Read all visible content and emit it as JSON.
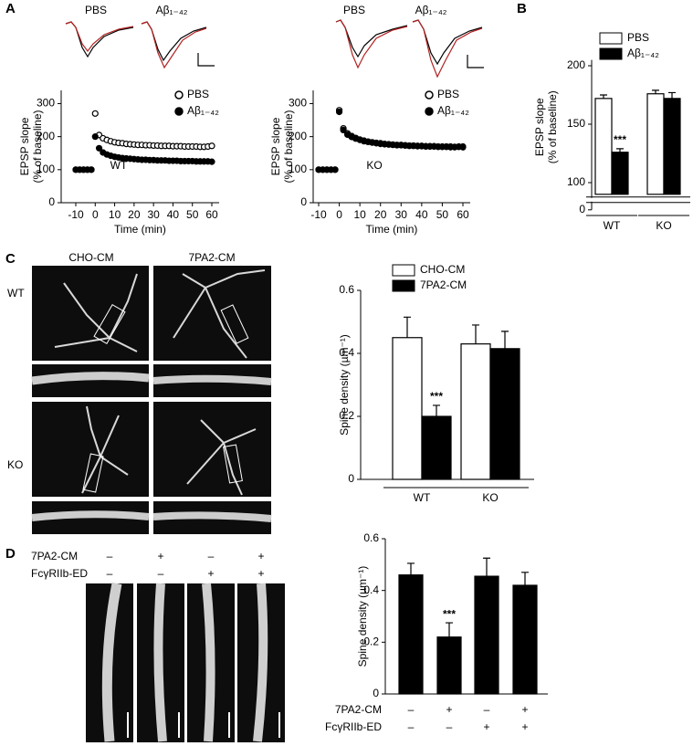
{
  "panel_labels": [
    "A",
    "B",
    "C",
    "D"
  ],
  "traces": {
    "labels": [
      "PBS",
      "Aβ₁₋₄₂",
      "PBS",
      "Aβ₁₋₄₂"
    ]
  },
  "images_c": {
    "columns": [
      "CHO-CM",
      "7PA2-CM"
    ],
    "rows": [
      "WT",
      "KO"
    ]
  },
  "images_d": {
    "conditions": [
      {
        "name": "7PA2-CM",
        "values": [
          "–",
          "+",
          "–",
          "+"
        ]
      },
      {
        "name": "FcγRIIb-ED",
        "values": [
          "–",
          "–",
          "+",
          "+"
        ]
      }
    ]
  },
  "chart_data": [
    {
      "type": "scatter",
      "ylabel": [
        "EPSP slope",
        "(% of baseline)"
      ],
      "xlabel": "Time (min)",
      "annotation": "WT",
      "x": [
        -10,
        -8,
        -6,
        -4,
        -2,
        0,
        2,
        4,
        6,
        8,
        10,
        12,
        14,
        16,
        18,
        20,
        22,
        24,
        26,
        28,
        30,
        32,
        34,
        36,
        38,
        40,
        42,
        44,
        46,
        48,
        50,
        52,
        54,
        56,
        58,
        60
      ],
      "xlim": [
        -10,
        60
      ],
      "xticks": [
        -10,
        0,
        10,
        20,
        30,
        40,
        50,
        60
      ],
      "ylim": [
        0,
        340
      ],
      "yticks": [
        0,
        100,
        200,
        300
      ],
      "series": [
        {
          "name": "PBS",
          "color": "#000000",
          "marker": "open",
          "values": [
            100,
            100,
            100,
            100,
            100,
            270,
            205,
            195,
            190,
            186,
            183,
            181,
            180,
            178,
            177,
            176,
            175,
            175,
            174,
            174,
            173,
            173,
            172,
            172,
            172,
            171,
            171,
            171,
            170,
            170,
            170,
            170,
            169,
            169,
            170,
            172
          ]
        },
        {
          "name": "Aβ₁₋₄₂",
          "color": "#000000",
          "marker": "filled",
          "values": [
            100,
            100,
            100,
            100,
            100,
            200,
            165,
            152,
            146,
            142,
            139,
            137,
            135,
            134,
            133,
            132,
            131,
            130,
            130,
            129,
            129,
            128,
            128,
            128,
            127,
            127,
            127,
            126,
            126,
            126,
            126,
            125,
            125,
            125,
            125,
            124
          ]
        }
      ]
    },
    {
      "type": "scatter",
      "ylabel": [
        "EPSP slope",
        "(% of baseline)"
      ],
      "xlabel": "Time (min)",
      "annotation": "KO",
      "x": [
        -10,
        -8,
        -6,
        -4,
        -2,
        0,
        2,
        4,
        6,
        8,
        10,
        12,
        14,
        16,
        18,
        20,
        22,
        24,
        26,
        28,
        30,
        32,
        34,
        36,
        38,
        40,
        42,
        44,
        46,
        48,
        50,
        52,
        54,
        56,
        58,
        60
      ],
      "xlim": [
        -10,
        60
      ],
      "xticks": [
        -10,
        0,
        10,
        20,
        30,
        40,
        50,
        60
      ],
      "ylim": [
        0,
        340
      ],
      "yticks": [
        0,
        100,
        200,
        300
      ],
      "series": [
        {
          "name": "PBS",
          "color": "#000000",
          "marker": "open",
          "values": [
            100,
            100,
            100,
            100,
            100,
            280,
            225,
            210,
            202,
            196,
            191,
            188,
            185,
            183,
            181,
            180,
            178,
            177,
            176,
            175,
            175,
            174,
            173,
            173,
            172,
            172,
            171,
            171,
            171,
            170,
            170,
            170,
            170,
            169,
            170,
            170
          ]
        },
        {
          "name": "Aβ₁₋₄₂",
          "color": "#000000",
          "marker": "filled",
          "values": [
            100,
            100,
            100,
            100,
            100,
            275,
            220,
            206,
            199,
            194,
            190,
            186,
            184,
            182,
            180,
            178,
            177,
            176,
            175,
            174,
            174,
            173,
            172,
            172,
            171,
            171,
            170,
            170,
            170,
            169,
            169,
            169,
            168,
            168,
            169,
            168
          ]
        }
      ]
    },
    {
      "type": "bar",
      "ylabel": [
        "EPSP slope",
        "(% of baseline)"
      ],
      "annotation": "***",
      "axis_break": true,
      "categories": [
        "WT",
        "KO"
      ],
      "ylim": [
        90,
        205
      ],
      "yticks": [
        0,
        100,
        150,
        200
      ],
      "series": [
        {
          "name": "PBS",
          "color": "#ffffff",
          "values": [
            172,
            176
          ],
          "errors": [
            3,
            3
          ]
        },
        {
          "name": "Aβ₁₋₄₂",
          "color": "#000000",
          "values": [
            126,
            172
          ],
          "errors": [
            3,
            5
          ]
        }
      ]
    },
    {
      "type": "bar",
      "ylabel": [
        "Spine density (µm⁻¹)"
      ],
      "annotation": "***",
      "categories": [
        "WT",
        "KO"
      ],
      "ylim": [
        0,
        0.6
      ],
      "yticks": [
        0,
        0.2,
        0.4,
        0.6
      ],
      "series": [
        {
          "name": "CHO-CM",
          "color": "#ffffff",
          "values": [
            0.45,
            0.43
          ],
          "errors": [
            0.065,
            0.06
          ]
        },
        {
          "name": "7PA2-CM",
          "color": "#000000",
          "values": [
            0.2,
            0.415
          ],
          "errors": [
            0.035,
            0.055
          ]
        }
      ]
    },
    {
      "type": "bar",
      "ylabel": [
        "Spine density (µm⁻¹)"
      ],
      "annotation": "***",
      "categories": [
        null,
        null,
        null,
        null
      ],
      "ylim": [
        0,
        0.6
      ],
      "yticks": [
        0,
        0.2,
        0.4,
        0.6
      ],
      "color": "#000000",
      "values": [
        0.46,
        0.22,
        0.455,
        0.42
      ],
      "errors": [
        0.045,
        0.055,
        0.07,
        0.05
      ],
      "conditions": [
        {
          "name": "7PA2-CM",
          "values": [
            "–",
            "+",
            "–",
            "+"
          ]
        },
        {
          "name": "FcγRIIb-ED",
          "values": [
            "–",
            "–",
            "+",
            "+"
          ]
        }
      ]
    }
  ]
}
